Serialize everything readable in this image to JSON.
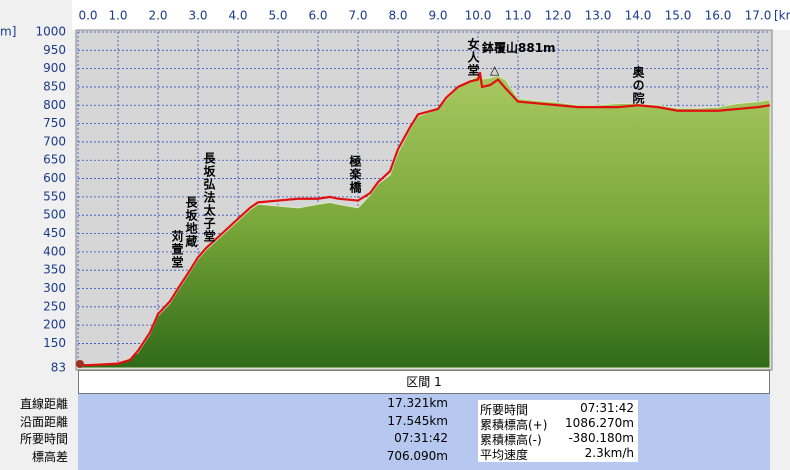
{
  "chart_data": {
    "type": "elevation",
    "x_label": "[km",
    "y_label": "m]",
    "xlim": [
      0,
      17.3
    ],
    "ylim": [
      83,
      1000
    ],
    "xticks": [
      {
        "value": 0,
        "label": "0.0"
      },
      {
        "value": 1,
        "label": "1.0"
      },
      {
        "value": 2,
        "label": "2.0"
      },
      {
        "value": 3,
        "label": "3.0"
      },
      {
        "value": 4,
        "label": "4.0"
      },
      {
        "value": 5,
        "label": "5.0"
      },
      {
        "value": 6,
        "label": "6.0"
      },
      {
        "value": 7,
        "label": "7.0"
      },
      {
        "value": 8,
        "label": "8.0"
      },
      {
        "value": 9,
        "label": "9.0"
      },
      {
        "value": 10,
        "label": "10.0"
      },
      {
        "value": 11,
        "label": "11.0"
      },
      {
        "value": 12,
        "label": "12.0"
      },
      {
        "value": 13,
        "label": "13.0"
      },
      {
        "value": 14,
        "label": "14.0"
      },
      {
        "value": 15,
        "label": "15.0"
      },
      {
        "value": 16,
        "label": "16.0"
      },
      {
        "value": 17,
        "label": "17.0"
      }
    ],
    "yticks": [
      1000,
      950,
      900,
      850,
      800,
      750,
      700,
      650,
      600,
      550,
      500,
      450,
      400,
      350,
      300,
      250,
      200,
      150,
      83
    ],
    "grid": true,
    "x": [
      0,
      0.5,
      1,
      1.3,
      1.5,
      1.8,
      2,
      2.3,
      2.5,
      2.8,
      3,
      3.2,
      3.5,
      4,
      4.3,
      4.5,
      5,
      5.5,
      6,
      6.3,
      6.5,
      7,
      7.3,
      7.5,
      7.8,
      8,
      8.3,
      8.5,
      9,
      9.2,
      9.5,
      9.8,
      10,
      10.05,
      10.1,
      10.3,
      10.5,
      10.7,
      11,
      11.5,
      12,
      12.5,
      13,
      13.5,
      14,
      14.5,
      15,
      15.5,
      16,
      16.5,
      17,
      17.3
    ],
    "series": [
      {
        "color": "#7aa83a",
        "fill": true,
        "values": [
          90,
          92,
          96,
          110,
          125,
          175,
          225,
          260,
          295,
          345,
          380,
          405,
          435,
          485,
          515,
          530,
          525,
          520,
          530,
          535,
          530,
          520,
          555,
          585,
          610,
          670,
          735,
          770,
          790,
          815,
          848,
          868,
          880,
          880,
          872,
          875,
          881,
          868,
          818,
          812,
          808,
          800,
          800,
          805,
          805,
          800,
          792,
          792,
          795,
          805,
          810,
          815
        ]
      },
      {
        "color": "#e01010",
        "values": [
          90,
          92,
          95,
          105,
          130,
          180,
          230,
          265,
          300,
          350,
          385,
          410,
          440,
          490,
          520,
          535,
          540,
          545,
          545,
          550,
          545,
          540,
          560,
          590,
          620,
          680,
          740,
          775,
          790,
          820,
          850,
          865,
          870,
          890,
          850,
          855,
          870,
          845,
          810,
          805,
          800,
          795,
          795,
          795,
          800,
          795,
          785,
          785,
          785,
          790,
          795,
          800
        ]
      }
    ],
    "annotations": [
      "苅萱堂",
      "長坂地蔵",
      "長坂弘法太子堂",
      "極楽橋",
      "女人堂",
      "鉢覆山881m",
      "△",
      "奥の院"
    ]
  },
  "panel": {
    "title": "区間 1",
    "rows": [
      {
        "label": "直線距離",
        "value": "17.321km"
      },
      {
        "label": "沿面距離",
        "value": "17.545km"
      },
      {
        "label": "所要時間",
        "value": "07:31:42"
      },
      {
        "label": "標高差",
        "value": "706.090m"
      }
    ],
    "box": [
      {
        "label": "所要時間",
        "value": "07:31:42"
      },
      {
        "label": "累積標高(+)",
        "value": "1086.270m"
      },
      {
        "label": "累積標高(-)",
        "value": "-380.180m"
      },
      {
        "label": "平均速度",
        "value": "2.3km/h"
      }
    ]
  }
}
